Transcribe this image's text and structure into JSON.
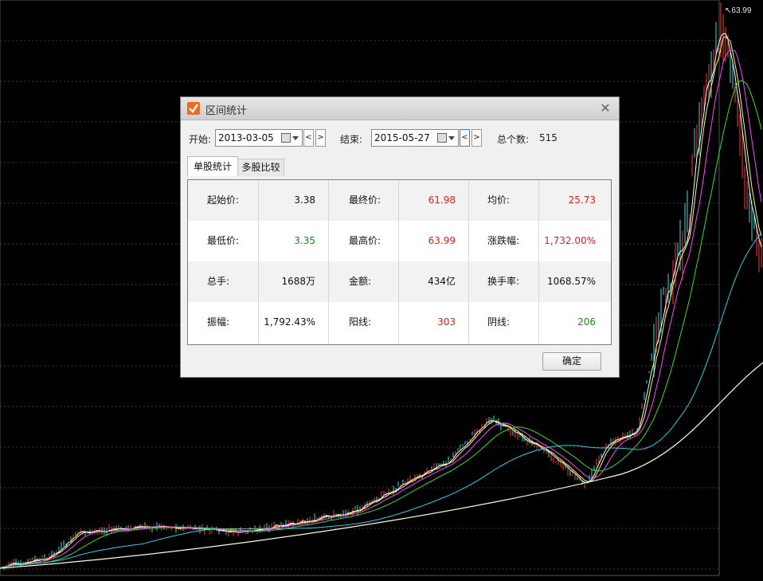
{
  "chart": {
    "peak_value_label": "63.99",
    "colors": {
      "background": "#000000",
      "up_candle": "#ff3b3b",
      "down_candle": "#3bdcdc",
      "ma_yellow": "#ffff66",
      "ma_white": "#ffffff",
      "ma_magenta": "#ff44ff",
      "ma_green": "#33dd33",
      "ma_cyan": "#33ccee",
      "ma_longterm": "#ffffcc"
    }
  },
  "dialog": {
    "title": "区间统计",
    "close_icon": "close-icon",
    "start_label": "开始:",
    "start_date": "2013-03-05",
    "end_label": "结束:",
    "end_date": "2015-05-27",
    "prev_label": "<",
    "next_label": ">",
    "total_label": "总个数:",
    "total_value": "515",
    "tabs": [
      "单股统计",
      "多股比较"
    ],
    "stats": [
      [
        {
          "label": "起始价:",
          "value": "3.38",
          "color": "black"
        },
        {
          "label": "最终价:",
          "value": "61.98",
          "color": "red"
        },
        {
          "label": "均价:",
          "value": "25.73",
          "color": "red"
        }
      ],
      [
        {
          "label": "最低价:",
          "value": "3.35",
          "color": "green"
        },
        {
          "label": "最高价:",
          "value": "63.99",
          "color": "red"
        },
        {
          "label": "涨跌幅:",
          "value": "1,732.00%",
          "color": "red"
        }
      ],
      [
        {
          "label": "总手:",
          "value": "1688万",
          "color": "black"
        },
        {
          "label": "金额:",
          "value": "434亿",
          "color": "black"
        },
        {
          "label": "换手率:",
          "value": "1068.57%",
          "color": "black"
        }
      ],
      [
        {
          "label": "振幅:",
          "value": "1,792.43%",
          "color": "black"
        },
        {
          "label": "阳线:",
          "value": "303",
          "color": "red"
        },
        {
          "label": "阴线:",
          "value": "206",
          "color": "green"
        }
      ]
    ],
    "ok_label": "确定"
  }
}
